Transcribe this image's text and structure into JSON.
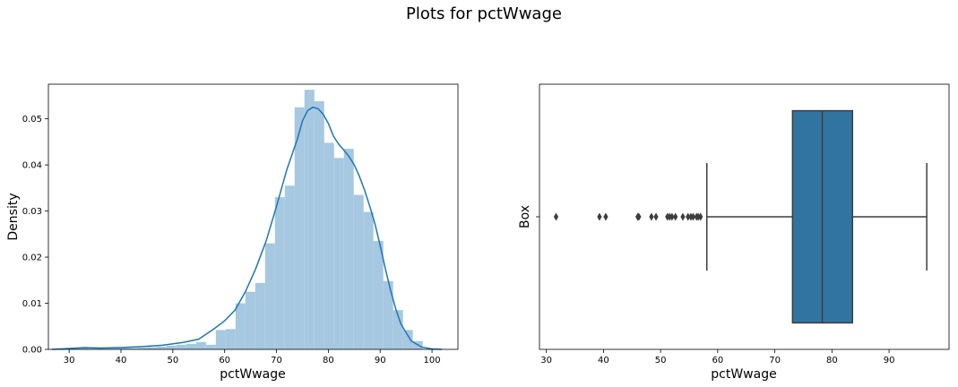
{
  "title": "Plots for pctWwage",
  "chart_data": [
    {
      "type": "histogram",
      "xlabel": "pctWwage",
      "ylabel": "Density",
      "xlim": [
        26,
        105
      ],
      "ylim": [
        0,
        0.0575
      ],
      "xticks": [
        30,
        40,
        50,
        60,
        70,
        80,
        90,
        100
      ],
      "yticks": [
        0.0,
        0.01,
        0.02,
        0.03,
        0.04,
        0.05
      ],
      "ytick_labels": [
        "0.00",
        "0.01",
        "0.02",
        "0.03",
        "0.04",
        "0.05"
      ],
      "bar_color": "#a6c8e0",
      "kde_color": "#1f77b4",
      "bins": [
        {
          "x0": 26.0,
          "x1": 27.9,
          "density": 0.0001
        },
        {
          "x0": 27.9,
          "x1": 29.8,
          "density": 0.0001
        },
        {
          "x0": 29.8,
          "x1": 31.7,
          "density": 0.0002
        },
        {
          "x0": 31.7,
          "x1": 33.6,
          "density": 0.0003
        },
        {
          "x0": 33.6,
          "x1": 35.5,
          "density": 0.0002
        },
        {
          "x0": 35.5,
          "x1": 37.4,
          "density": 0.0002
        },
        {
          "x0": 37.4,
          "x1": 39.3,
          "density": 0.0003
        },
        {
          "x0": 39.3,
          "x1": 41.2,
          "density": 0.0004
        },
        {
          "x0": 41.2,
          "x1": 43.1,
          "density": 0.0003
        },
        {
          "x0": 43.1,
          "x1": 45.0,
          "density": 0.0004
        },
        {
          "x0": 45.0,
          "x1": 46.9,
          "density": 0.0005
        },
        {
          "x0": 46.9,
          "x1": 48.8,
          "density": 0.0006
        },
        {
          "x0": 48.8,
          "x1": 50.7,
          "density": 0.0008
        },
        {
          "x0": 50.7,
          "x1": 52.6,
          "density": 0.001
        },
        {
          "x0": 52.6,
          "x1": 54.5,
          "density": 0.0012
        },
        {
          "x0": 54.5,
          "x1": 56.4,
          "density": 0.0016
        },
        {
          "x0": 56.4,
          "x1": 58.3,
          "density": 0.001
        },
        {
          "x0": 58.3,
          "x1": 60.2,
          "density": 0.0042
        },
        {
          "x0": 60.2,
          "x1": 62.1,
          "density": 0.0044
        },
        {
          "x0": 62.1,
          "x1": 64.0,
          "density": 0.01
        },
        {
          "x0": 64.0,
          "x1": 65.9,
          "density": 0.0125
        },
        {
          "x0": 65.9,
          "x1": 67.8,
          "density": 0.0144
        },
        {
          "x0": 67.8,
          "x1": 69.7,
          "density": 0.023
        },
        {
          "x0": 69.7,
          "x1": 71.6,
          "density": 0.033
        },
        {
          "x0": 71.6,
          "x1": 73.5,
          "density": 0.0355
        },
        {
          "x0": 73.5,
          "x1": 75.4,
          "density": 0.0525
        },
        {
          "x0": 75.4,
          "x1": 77.3,
          "density": 0.0563
        },
        {
          "x0": 77.3,
          "x1": 79.2,
          "density": 0.0538
        },
        {
          "x0": 79.2,
          "x1": 81.1,
          "density": 0.0448
        },
        {
          "x0": 81.1,
          "x1": 83.0,
          "density": 0.0415
        },
        {
          "x0": 83.0,
          "x1": 84.9,
          "density": 0.0435
        },
        {
          "x0": 84.9,
          "x1": 86.8,
          "density": 0.0335
        },
        {
          "x0": 86.8,
          "x1": 88.7,
          "density": 0.0298
        },
        {
          "x0": 88.7,
          "x1": 90.6,
          "density": 0.0235
        },
        {
          "x0": 90.6,
          "x1": 92.5,
          "density": 0.0148
        },
        {
          "x0": 92.5,
          "x1": 94.4,
          "density": 0.0085
        },
        {
          "x0": 94.4,
          "x1": 96.3,
          "density": 0.0042
        },
        {
          "x0": 96.3,
          "x1": 98.2,
          "density": 0.0018
        }
      ],
      "kde": {
        "x": [
          26.7,
          30,
          33,
          36,
          40,
          44,
          48,
          52,
          55,
          58,
          60,
          62,
          64,
          66,
          68,
          70,
          72,
          74,
          75,
          76,
          77,
          78,
          79,
          80,
          81,
          82,
          83,
          84,
          85,
          86,
          87,
          88,
          89,
          90,
          91,
          92,
          93,
          94,
          96,
          98,
          100,
          101.9
        ],
        "y": [
          0.0,
          0.0002,
          0.0004,
          0.0003,
          0.0004,
          0.0006,
          0.0009,
          0.0015,
          0.0022,
          0.0045,
          0.0062,
          0.0085,
          0.0125,
          0.0175,
          0.0235,
          0.031,
          0.039,
          0.0455,
          0.0495,
          0.0518,
          0.0525,
          0.0522,
          0.051,
          0.049,
          0.0462,
          0.0445,
          0.0432,
          0.0418,
          0.04,
          0.0375,
          0.0345,
          0.031,
          0.0272,
          0.0225,
          0.0175,
          0.0128,
          0.0088,
          0.0055,
          0.0018,
          0.0005,
          0.0001,
          0.0
        ]
      }
    },
    {
      "type": "box",
      "xlabel": "pctWwage",
      "ylabel": "Box",
      "category_label": "",
      "xlim": [
        28.8,
        100.5
      ],
      "xticks": [
        30,
        40,
        50,
        60,
        70,
        80,
        90
      ],
      "box_color": "#3274a1",
      "edge_color": "#3d3d3d",
      "q1": 73.1,
      "median": 78.3,
      "q3": 83.6,
      "whisker_low": 58.1,
      "whisker_high": 96.6,
      "outliers": [
        31.7,
        39.3,
        40.4,
        46.0,
        46.2,
        48.4,
        49.2,
        51.2,
        51.6,
        52.0,
        52.6,
        53.9,
        54.8,
        55.3,
        55.7,
        56.3,
        56.6,
        57.0
      ]
    }
  ]
}
